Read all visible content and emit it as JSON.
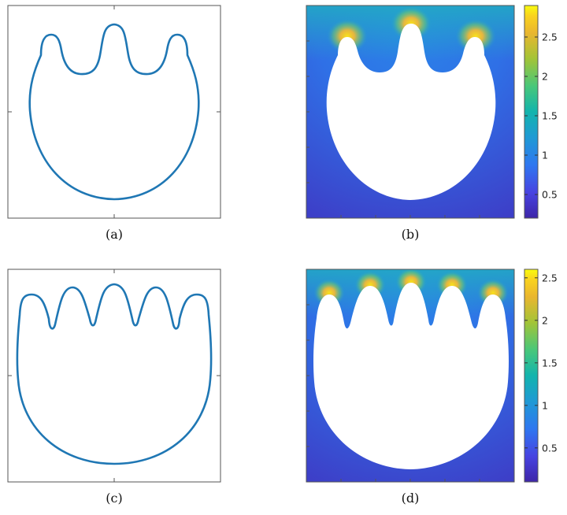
{
  "figure": {
    "captions": [
      "(a)",
      "(b)",
      "(c)",
      "(d)"
    ]
  },
  "colors": {
    "outline": "#1f77b4",
    "axes": "#555555",
    "colormap": [
      "#3e26a8",
      "#4743e1",
      "#2f77f0",
      "#1f9ad4",
      "#12b4ad",
      "#48c77a",
      "#a3c437",
      "#e9b62f",
      "#f9d21f",
      "#f9fb0e"
    ]
  },
  "panels": {
    "a": {
      "type": "outline",
      "lobes": 3
    },
    "b": {
      "type": "field",
      "lobes": 3,
      "colorbar_ticks": [
        "0.5",
        "1",
        "1.5",
        "2",
        "2.5"
      ],
      "colorbar_range": [
        0.2,
        2.9
      ]
    },
    "c": {
      "type": "outline",
      "lobes": 5
    },
    "d": {
      "type": "field",
      "lobes": 5,
      "colorbar_ticks": [
        "0.5",
        "1",
        "1.5",
        "2",
        "2.5"
      ],
      "colorbar_range": [
        0.1,
        2.6
      ]
    }
  }
}
